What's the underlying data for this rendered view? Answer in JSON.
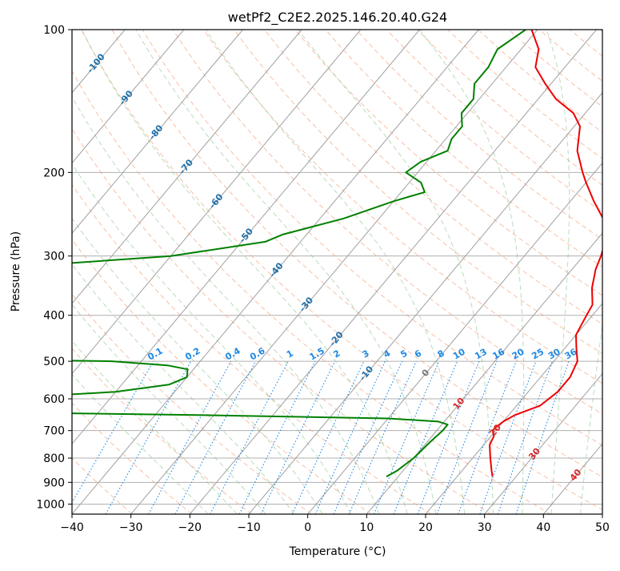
{
  "chart_data": {
    "type": "line",
    "title": "wetPf2_C2E2.2025.146.20.40.G24",
    "xlabel": "Temperature (°C)",
    "ylabel": "Pressure (hPa)",
    "xlim": [
      -40,
      50
    ],
    "ylim": [
      1050,
      100
    ],
    "y_scale": "log",
    "skew": "skew-T",
    "grid": true,
    "xticks": [
      -40,
      -30,
      -20,
      -10,
      0,
      10,
      20,
      30,
      40,
      50
    ],
    "yticks": [
      100,
      200,
      300,
      400,
      500,
      600,
      700,
      800,
      900,
      1000
    ],
    "isotherm_labels": [
      -100,
      -90,
      -80,
      -70,
      -60,
      -50,
      -40,
      -30,
      -20,
      -10,
      0,
      10,
      20,
      30,
      40
    ],
    "mixing_ratio_labels": [
      "0.1",
      "0.2",
      "0.4",
      "0.6",
      "1",
      "1.5",
      "2",
      "3",
      "4",
      "5",
      "6",
      "8",
      "10",
      "13",
      "16",
      "20",
      "25",
      "30",
      "36"
    ],
    "series": [
      {
        "role": "temperature",
        "color": "#ee0000",
        "p": [
          875,
          850,
          800,
          750,
          720,
          700,
          690,
          670,
          650,
          620,
          580,
          540,
          500,
          470,
          440,
          420,
          400,
          380,
          350,
          320,
          300,
          270,
          250,
          230,
          210,
          200,
          180,
          160,
          150,
          140,
          130,
          120,
          110,
          100
        ],
        "t": [
          26,
          25,
          23,
          21,
          20.5,
          19.5,
          19.5,
          20,
          21,
          24,
          25,
          25,
          24,
          22,
          20,
          19.5,
          19,
          18.5,
          16,
          14,
          13,
          11,
          8,
          4,
          0,
          -2,
          -6,
          -9,
          -12,
          -17,
          -21,
          -25,
          -27,
          -31
        ]
      },
      {
        "role": "dewpoint",
        "color": "#008000",
        "p": [
          875,
          850,
          800,
          740,
          700,
          680,
          670,
          660,
          650,
          640,
          630,
          620,
          610,
          600,
          580,
          560,
          540,
          520,
          510,
          500,
          495,
          480,
          460,
          430,
          400,
          380,
          360,
          340,
          320,
          300,
          280,
          270,
          250,
          230,
          220,
          210,
          200,
          190,
          180,
          170,
          160,
          150,
          140,
          130,
          120,
          110,
          100
        ],
        "t": [
          8,
          9,
          10,
          10.5,
          11,
          11,
          9,
          0,
          -30,
          -70,
          -80,
          -80,
          -80,
          -70,
          -50,
          -42,
          -40,
          -41,
          -45,
          -55,
          -80,
          -100,
          -100,
          -100,
          -100,
          -100,
          -100,
          -100,
          -90,
          -60,
          -46,
          -44,
          -36,
          -30,
          -26,
          -28,
          -32,
          -31,
          -28,
          -29,
          -29,
          -31,
          -31,
          -33,
          -33,
          -34,
          -32
        ]
      }
    ]
  }
}
